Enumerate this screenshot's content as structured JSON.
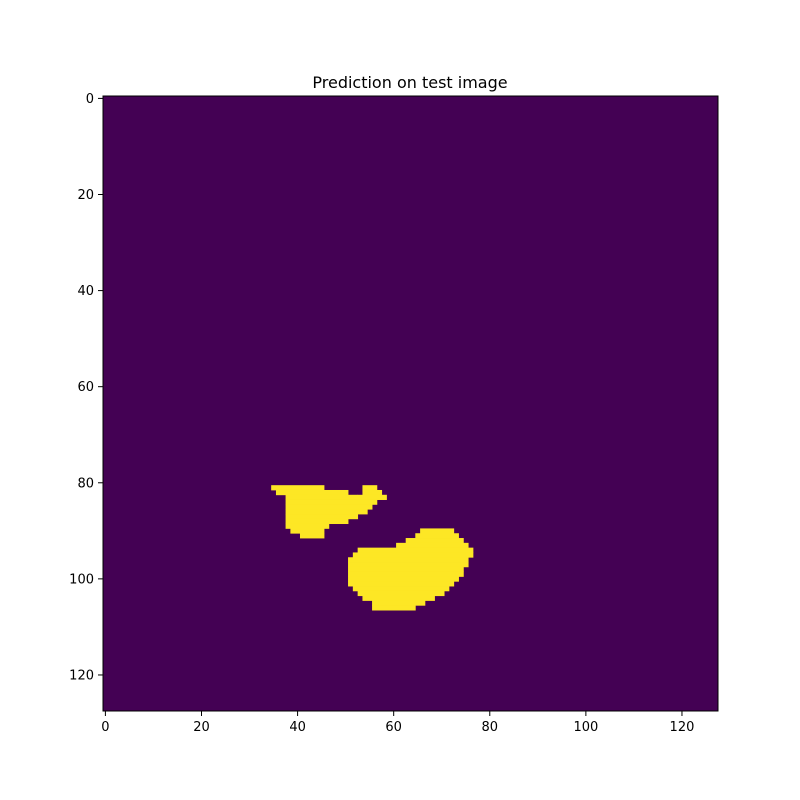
{
  "chart_data": {
    "type": "heatmap",
    "title": "Prediction on test image",
    "xlabel": "",
    "ylabel": "",
    "shape": [
      128,
      128
    ],
    "xlim": [
      -0.5,
      127.5
    ],
    "ylim": [
      127.5,
      -0.5
    ],
    "x_ticks": [
      0,
      20,
      40,
      60,
      80,
      100,
      120
    ],
    "y_ticks": [
      0,
      20,
      40,
      60,
      80,
      100,
      120
    ],
    "grid": false,
    "legend": "none",
    "background_value": 0,
    "foreground_value": 1,
    "colors": {
      "background": "#440154",
      "foreground": "#fde725"
    },
    "regions": [
      {
        "label": "upper region",
        "rows": [
          {
            "y": 81,
            "x0": 35,
            "x1": 45
          },
          {
            "y": 82,
            "x0": 36,
            "x1": 50
          },
          {
            "y": 83,
            "x0": 38,
            "x1": 52
          },
          {
            "y": 84,
            "x0": 38,
            "x1": 56
          },
          {
            "y": 85,
            "x0": 38,
            "x1": 55
          },
          {
            "y": 86,
            "x0": 38,
            "x1": 54
          },
          {
            "y": 87,
            "x0": 38,
            "x1": 52
          },
          {
            "y": 88,
            "x0": 38,
            "x1": 50
          },
          {
            "y": 89,
            "x0": 38,
            "x1": 46
          },
          {
            "y": 90,
            "x0": 39,
            "x1": 45
          },
          {
            "y": 91,
            "x0": 41,
            "x1": 45
          }
        ]
      },
      {
        "label": "upper region tip",
        "rows": [
          {
            "y": 81,
            "x0": 54,
            "x1": 56
          },
          {
            "y": 82,
            "x0": 54,
            "x1": 57
          },
          {
            "y": 83,
            "x0": 53,
            "x1": 58
          }
        ]
      },
      {
        "label": "lower region",
        "rows": [
          {
            "y": 90,
            "x0": 66,
            "x1": 72
          },
          {
            "y": 91,
            "x0": 65,
            "x1": 73
          },
          {
            "y": 92,
            "x0": 63,
            "x1": 74
          },
          {
            "y": 93,
            "x0": 61,
            "x1": 75
          },
          {
            "y": 94,
            "x0": 53,
            "x1": 76
          },
          {
            "y": 95,
            "x0": 52,
            "x1": 76
          },
          {
            "y": 96,
            "x0": 51,
            "x1": 75
          },
          {
            "y": 97,
            "x0": 51,
            "x1": 75
          },
          {
            "y": 98,
            "x0": 51,
            "x1": 74
          },
          {
            "y": 99,
            "x0": 51,
            "x1": 74
          },
          {
            "y": 100,
            "x0": 51,
            "x1": 73
          },
          {
            "y": 101,
            "x0": 51,
            "x1": 72
          },
          {
            "y": 102,
            "x0": 52,
            "x1": 71
          },
          {
            "y": 103,
            "x0": 53,
            "x1": 70
          },
          {
            "y": 104,
            "x0": 54,
            "x1": 68
          },
          {
            "y": 105,
            "x0": 56,
            "x1": 66
          },
          {
            "y": 106,
            "x0": 56,
            "x1": 64
          }
        ]
      }
    ]
  }
}
